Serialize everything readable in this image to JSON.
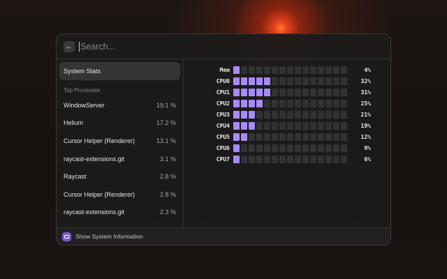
{
  "search": {
    "placeholder": "Search..."
  },
  "sidebar": {
    "selected": "System Stats",
    "section": "Top Processes",
    "processes": [
      {
        "name": "WindowServer",
        "cpu": "19.1 %"
      },
      {
        "name": "Helium",
        "cpu": "17.2 %"
      },
      {
        "name": "Cursor Helper (Renderer)",
        "cpu": "13.1 %"
      },
      {
        "name": "raycast-extensions.git",
        "cpu": "3.1 %"
      },
      {
        "name": "Raycast",
        "cpu": "2.8 %"
      },
      {
        "name": "Cursor Helper (Renderer)",
        "cpu": "2.8 %"
      },
      {
        "name": "raycast-extensions.git",
        "cpu": "2.3 %"
      }
    ]
  },
  "stats": {
    "accent": "#a78bfa",
    "cells_per_row": 15,
    "rows": [
      {
        "label": "Mem",
        "percent": 4,
        "text": "4%"
      },
      {
        "label": "CPU0",
        "percent": 32,
        "text": "32%"
      },
      {
        "label": "CPU1",
        "percent": 31,
        "text": "31%"
      },
      {
        "label": "CPU2",
        "percent": 25,
        "text": "25%"
      },
      {
        "label": "CPU3",
        "percent": 21,
        "text": "21%"
      },
      {
        "label": "CPU4",
        "percent": 19,
        "text": "19%"
      },
      {
        "label": "CPU5",
        "percent": 12,
        "text": "12%"
      },
      {
        "label": "CPU6",
        "percent": 9,
        "text": "9%"
      },
      {
        "label": "CPU7",
        "percent": 6,
        "text": "6%"
      }
    ]
  },
  "footer": {
    "icon": "monitor-icon",
    "action": "Show System Information"
  }
}
